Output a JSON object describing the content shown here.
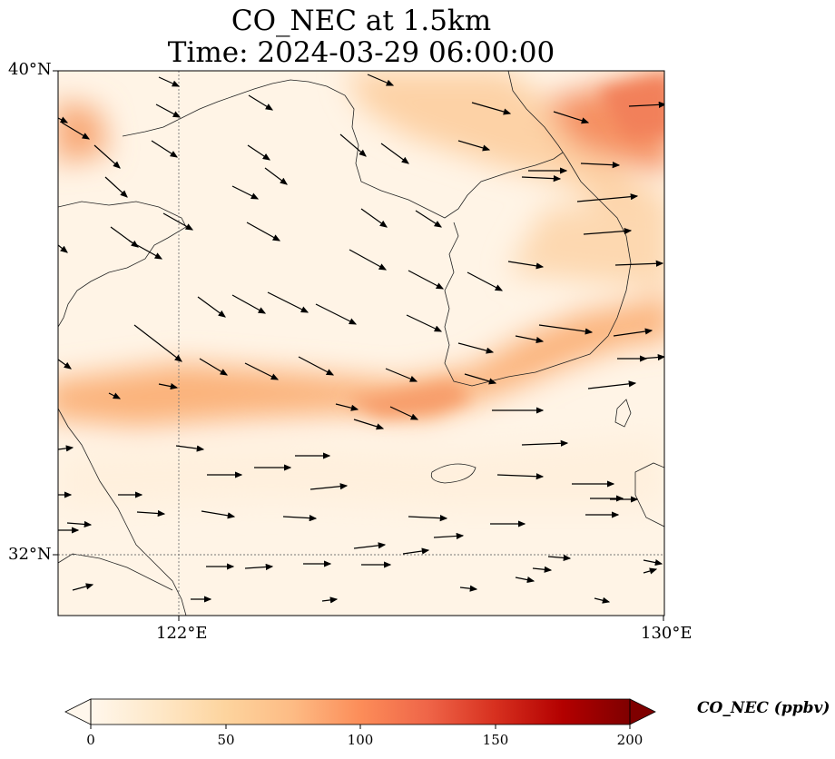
{
  "title_line1": "CO_NEC at 1.5km",
  "title_line2": "Time: 2024-03-29 06:00:00",
  "axes": {
    "lat_ticks": [
      "40°N",
      "32°N"
    ],
    "lon_ticks": [
      "122°E",
      "130°E"
    ],
    "lon_range": [
      120,
      130
    ],
    "lat_range": [
      31,
      40
    ]
  },
  "colorbar": {
    "label": "CO_NEC (ppbv)",
    "ticks": [
      "0",
      "50",
      "100",
      "150",
      "200"
    ],
    "range": [
      0,
      200
    ],
    "colormap": "OrRd",
    "extend": "both"
  },
  "colors": {
    "low": "#fff7ec",
    "mid": "#fdbb84",
    "high": "#d7301f",
    "max": "#7f0000"
  },
  "chart_data": {
    "type": "heatmap",
    "variable": "CO_NEC",
    "height": "1.5km",
    "time": "2024-03-29 06:00:00",
    "units": "ppbv",
    "features": [
      {
        "name": "southwest-northeast high band",
        "value_ppbv": 70
      },
      {
        "name": "northeast corner maximum",
        "value_ppbv": 110
      },
      {
        "name": "northwest edge patch",
        "value_ppbv": 65
      },
      {
        "name": "background",
        "value_ppbv": 10
      }
    ],
    "wind_vectors": "westerly to west-northwesterly flow across domain"
  }
}
